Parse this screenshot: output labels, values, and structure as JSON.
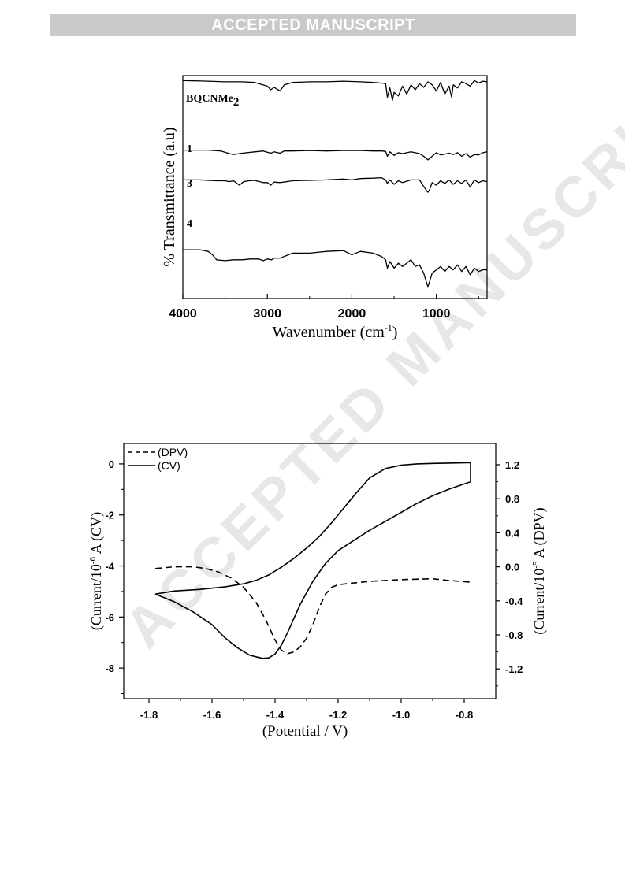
{
  "banner": "ACCEPTED MANUSCRIPT",
  "watermark": "ACCEPTED MANUSCRIPT",
  "chart_data": [
    {
      "type": "line",
      "xlabel": "Wavenumber (cm-1)",
      "xlabel_main": "Wavenumber (cm",
      "xlabel_sup": "-1",
      "xlabel_end": ")",
      "ylabel": "% Transmittance (a.u)",
      "xlim": [
        4000,
        400
      ],
      "x_ticks": [
        4000,
        3000,
        2000,
        1000
      ],
      "x_tick_labels": [
        "4000",
        "3000",
        "2000",
        "1000"
      ],
      "y_ticks": "none",
      "grid": false,
      "series": [
        {
          "name": "BQCNMe2",
          "label_main": "BQCNMe",
          "label_sub": "2",
          "x": [
            4000,
            3700,
            3500,
            3300,
            3150,
            3000,
            2960,
            2920,
            2850,
            2800,
            2700,
            2500,
            2300,
            2100,
            1900,
            1750,
            1650,
            1600,
            1580,
            1550,
            1520,
            1500,
            1450,
            1400,
            1350,
            1300,
            1250,
            1200,
            1150,
            1100,
            1050,
            1000,
            950,
            900,
            850,
            820,
            800,
            750,
            700,
            650,
            600,
            550,
            500,
            450,
            400
          ],
          "y": [
            97,
            96,
            95,
            95,
            94,
            88,
            82,
            86,
            80,
            90,
            94,
            95,
            95,
            96,
            95,
            94,
            93,
            92,
            70,
            85,
            65,
            78,
            72,
            88,
            75,
            90,
            82,
            92,
            86,
            95,
            90,
            80,
            94,
            75,
            88,
            70,
            90,
            85,
            95,
            92,
            88,
            97,
            93,
            96,
            95
          ]
        },
        {
          "name": "1",
          "x": [
            4000,
            3700,
            3550,
            3450,
            3400,
            3300,
            3150,
            3050,
            2960,
            2920,
            2850,
            2800,
            2700,
            2500,
            2300,
            2100,
            1900,
            1750,
            1650,
            1600,
            1580,
            1550,
            1500,
            1450,
            1400,
            1300,
            1200,
            1150,
            1100,
            1050,
            1000,
            950,
            850,
            800,
            750,
            700,
            650,
            600,
            550,
            500,
            450,
            400
          ],
          "y": [
            74,
            74,
            72,
            66,
            64,
            67,
            70,
            72,
            67,
            70,
            67,
            72,
            72,
            73,
            72,
            73,
            73,
            72,
            72,
            71,
            60,
            70,
            62,
            68,
            66,
            70,
            66,
            60,
            52,
            60,
            68,
            63,
            67,
            64,
            68,
            60,
            66,
            58,
            64,
            63,
            68,
            70
          ]
        },
        {
          "name": "3",
          "x": [
            4000,
            3800,
            3600,
            3500,
            3450,
            3400,
            3330,
            3280,
            3220,
            3150,
            3050,
            3000,
            2960,
            2920,
            2850,
            2700,
            2500,
            2300,
            2100,
            2000,
            1900,
            1750,
            1650,
            1600,
            1580,
            1550,
            1500,
            1450,
            1400,
            1300,
            1200,
            1150,
            1100,
            1080,
            1050,
            1000,
            950,
            900,
            850,
            800,
            750,
            700,
            650,
            600,
            550,
            500,
            450,
            400
          ],
          "y": [
            60,
            60,
            58,
            58,
            56,
            58,
            48,
            56,
            58,
            59,
            54,
            54,
            48,
            55,
            54,
            58,
            59,
            60,
            62,
            60,
            63,
            64,
            65,
            60,
            52,
            60,
            50,
            58,
            54,
            60,
            60,
            45,
            32,
            38,
            54,
            48,
            58,
            52,
            60,
            50,
            58,
            52,
            60,
            44,
            60,
            54,
            58,
            56
          ]
        },
        {
          "name": "4",
          "x": [
            4000,
            3800,
            3700,
            3650,
            3600,
            3500,
            3400,
            3300,
            3200,
            3100,
            3050,
            3000,
            2950,
            2920,
            2850,
            2700,
            2500,
            2300,
            2100,
            2000,
            1900,
            1750,
            1650,
            1600,
            1580,
            1550,
            1500,
            1450,
            1400,
            1300,
            1250,
            1200,
            1150,
            1120,
            1100,
            1080,
            1050,
            1000,
            950,
            900,
            850,
            800,
            750,
            700,
            650,
            600,
            550,
            500,
            450,
            400
          ],
          "y": [
            48,
            48,
            46,
            42,
            36,
            35,
            36,
            36,
            37,
            37,
            35,
            37,
            36,
            38,
            38,
            44,
            44,
            46,
            47,
            42,
            46,
            44,
            40,
            36,
            26,
            34,
            26,
            32,
            28,
            36,
            28,
            30,
            20,
            10,
            4,
            10,
            20,
            24,
            28,
            22,
            28,
            24,
            30,
            22,
            28,
            18,
            26,
            22,
            24,
            24
          ]
        }
      ]
    },
    {
      "type": "line",
      "xlabel": "(Potential / V)",
      "ylabel_left": "(Current/10-6 A (CV)",
      "ylabel_left_main": "(Current/10",
      "ylabel_left_sup": "-6",
      "ylabel_left_end": " A (CV)",
      "ylabel_right": "(Current/10-5 A (DPV)",
      "ylabel_right_main": "(Current/10",
      "ylabel_right_sup": "-5",
      "ylabel_right_end": " A (DPV)",
      "xlim": [
        -1.88,
        -0.7
      ],
      "ylim_left": [
        -9.2,
        0.8
      ],
      "ylim_right": [
        -1.55,
        1.45
      ],
      "x_ticks": [
        -1.8,
        -1.6,
        -1.4,
        -1.2,
        -1.0,
        -0.8
      ],
      "x_tick_labels": [
        "-1.8",
        "-1.6",
        "-1.4",
        "-1.2",
        "-1.0",
        "-0.8"
      ],
      "y_left_ticks": [
        0,
        -2,
        -4,
        -6,
        -8
      ],
      "y_left_tick_labels": [
        "0",
        "-2",
        "-4",
        "-6",
        "-8"
      ],
      "y_right_ticks": [
        1.2,
        0.8,
        0.4,
        0.0,
        -0.4,
        -0.8,
        -1.2
      ],
      "y_right_tick_labels": [
        "1.2",
        "0.8",
        "0.4",
        "0.0",
        "-0.4",
        "-0.8",
        "-1.2"
      ],
      "legend_position": "top-left",
      "grid": false,
      "series": [
        {
          "name": "(DPV)",
          "axis": "right",
          "style": "dashed",
          "x": [
            -1.78,
            -1.72,
            -1.66,
            -1.62,
            -1.58,
            -1.54,
            -1.5,
            -1.46,
            -1.43,
            -1.4,
            -1.38,
            -1.36,
            -1.34,
            -1.32,
            -1.3,
            -1.28,
            -1.26,
            -1.24,
            -1.22,
            -1.2,
            -1.15,
            -1.1,
            -1.0,
            -0.9,
            -0.85,
            -0.78
          ],
          "y": [
            -0.02,
            0.0,
            0.0,
            -0.02,
            -0.06,
            -0.13,
            -0.24,
            -0.42,
            -0.62,
            -0.86,
            -0.98,
            -1.02,
            -1.0,
            -0.94,
            -0.84,
            -0.68,
            -0.48,
            -0.32,
            -0.24,
            -0.21,
            -0.19,
            -0.17,
            -0.15,
            -0.14,
            -0.16,
            -0.18
          ]
        },
        {
          "name": "(CV)",
          "axis": "left",
          "style": "solid",
          "x": [
            -1.78,
            -1.72,
            -1.64,
            -1.56,
            -1.5,
            -1.46,
            -1.42,
            -1.38,
            -1.34,
            -1.3,
            -1.26,
            -1.22,
            -1.18,
            -1.14,
            -1.1,
            -1.05,
            -1.0,
            -0.95,
            -0.9,
            -0.85,
            -0.78,
            -0.78,
            -0.85,
            -0.9,
            -0.95,
            -1.0,
            -1.05,
            -1.1,
            -1.15,
            -1.2,
            -1.24,
            -1.28,
            -1.32,
            -1.36,
            -1.38,
            -1.4,
            -1.42,
            -1.44,
            -1.48,
            -1.52,
            -1.56,
            -1.6,
            -1.66,
            -1.72,
            -1.78
          ],
          "y": [
            -5.1,
            -4.98,
            -4.92,
            -4.82,
            -4.7,
            -4.56,
            -4.35,
            -4.05,
            -3.7,
            -3.3,
            -2.85,
            -2.3,
            -1.7,
            -1.1,
            -0.55,
            -0.18,
            -0.05,
            0.0,
            0.02,
            0.03,
            0.05,
            -0.7,
            -1.0,
            -1.25,
            -1.55,
            -1.9,
            -2.25,
            -2.6,
            -3.0,
            -3.4,
            -3.9,
            -4.6,
            -5.5,
            -6.6,
            -7.1,
            -7.45,
            -7.6,
            -7.62,
            -7.5,
            -7.2,
            -6.8,
            -6.3,
            -5.8,
            -5.4,
            -5.1
          ]
        }
      ]
    }
  ]
}
